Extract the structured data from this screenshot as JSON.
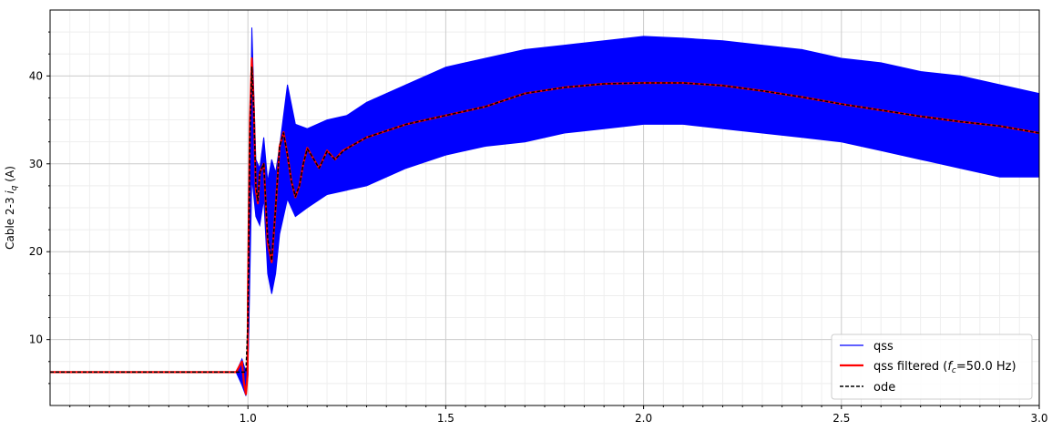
{
  "chart_data": {
    "type": "line",
    "title": "",
    "xlabel": "",
    "ylabel_prefix": "Cable 2-3 ",
    "ylabel_var": "i",
    "ylabel_sub": "q",
    "ylabel_suffix": " (A)",
    "xlim": [
      0.5,
      3.0
    ],
    "ylim": [
      2.5,
      47.5
    ],
    "grid": "major and minor",
    "legend_position": "lower-right",
    "x_ticks": [
      1.0,
      1.5,
      2.0,
      2.5,
      3.0
    ],
    "x_tick_labels": [
      "1.0",
      "1.5",
      "2.0",
      "2.5",
      "3.0"
    ],
    "y_ticks": [
      10,
      20,
      30,
      40
    ],
    "y_tick_labels": [
      "10",
      "20",
      "30",
      "40"
    ],
    "series": [
      {
        "name": "qss",
        "color": "#0000ff",
        "style": "solid",
        "kind": "oscillation-envelope",
        "x": [
          0.5,
          0.97,
          0.985,
          0.995,
          1.0,
          1.01,
          1.02,
          1.03,
          1.04,
          1.05,
          1.06,
          1.07,
          1.08,
          1.1,
          1.12,
          1.15,
          1.2,
          1.25,
          1.3,
          1.4,
          1.5,
          1.6,
          1.7,
          1.8,
          1.9,
          2.0,
          2.1,
          2.2,
          2.3,
          2.4,
          2.5,
          2.6,
          2.7,
          2.8,
          2.9,
          3.0
        ],
        "upper": [
          6.3,
          6.3,
          7.8,
          6.3,
          7.0,
          45.5,
          30.5,
          29.5,
          33.0,
          28.0,
          30.5,
          29.0,
          32.0,
          39.0,
          34.5,
          34.0,
          35.0,
          35.5,
          37.0,
          39.0,
          41.0,
          42.0,
          43.0,
          43.5,
          44.0,
          44.5,
          44.3,
          44.0,
          43.5,
          43.0,
          42.0,
          41.5,
          40.5,
          40.0,
          39.0,
          38.0
        ],
        "lower": [
          6.3,
          6.3,
          4.8,
          3.6,
          6.0,
          28.5,
          24.0,
          23.0,
          26.0,
          17.5,
          15.2,
          17.5,
          22.0,
          26.0,
          24.0,
          25.0,
          26.5,
          27.0,
          27.5,
          29.5,
          31.0,
          32.0,
          32.5,
          33.5,
          34.0,
          34.5,
          34.5,
          34.0,
          33.5,
          33.0,
          32.5,
          31.5,
          30.5,
          29.5,
          28.5,
          28.5
        ]
      },
      {
        "name": "qss filtered (fc=50.0 Hz)",
        "color": "#ff0000",
        "style": "solid",
        "x": [
          0.5,
          0.97,
          0.985,
          0.99,
          0.995,
          0.999,
          1.0,
          1.005,
          1.01,
          1.015,
          1.02,
          1.025,
          1.03,
          1.04,
          1.05,
          1.06,
          1.07,
          1.08,
          1.09,
          1.1,
          1.11,
          1.12,
          1.13,
          1.14,
          1.15,
          1.16,
          1.18,
          1.2,
          1.22,
          1.24,
          1.26,
          1.3,
          1.4,
          1.5,
          1.6,
          1.7,
          1.8,
          1.9,
          2.0,
          2.1,
          2.2,
          2.3,
          2.4,
          2.5,
          2.6,
          2.7,
          2.8,
          2.9,
          3.0
        ],
        "values": [
          6.3,
          6.3,
          7.5,
          5.0,
          3.8,
          6.0,
          15.0,
          35.0,
          42.0,
          36.0,
          27.0,
          25.5,
          29.0,
          30.0,
          21.0,
          18.8,
          25.0,
          32.0,
          33.6,
          31.0,
          28.0,
          26.2,
          27.5,
          30.0,
          31.8,
          31.0,
          29.5,
          31.5,
          30.5,
          31.5,
          32.0,
          33.0,
          34.5,
          35.5,
          36.5,
          38.0,
          38.7,
          39.1,
          39.2,
          39.2,
          38.9,
          38.3,
          37.6,
          36.8,
          36.1,
          35.4,
          34.8,
          34.3,
          33.5
        ]
      },
      {
        "name": "ode",
        "color": "#000000",
        "style": "dashed",
        "x": [
          0.5,
          0.98,
          0.99,
          0.995,
          1.0,
          1.005,
          1.01,
          1.015,
          1.02,
          1.025,
          1.03,
          1.04,
          1.05,
          1.06,
          1.07,
          1.08,
          1.09,
          1.1,
          1.11,
          1.12,
          1.13,
          1.14,
          1.15,
          1.16,
          1.18,
          1.2,
          1.22,
          1.24,
          1.26,
          1.3,
          1.4,
          1.5,
          1.6,
          1.7,
          1.8,
          1.9,
          2.0,
          2.1,
          2.2,
          2.3,
          2.4,
          2.5,
          2.6,
          2.7,
          2.8,
          2.9,
          3.0
        ],
        "values": [
          6.3,
          6.3,
          6.3,
          6.3,
          12.0,
          33.0,
          41.0,
          36.0,
          27.5,
          25.8,
          29.0,
          30.0,
          21.5,
          19.0,
          25.0,
          32.0,
          33.5,
          31.0,
          28.0,
          26.3,
          27.5,
          30.0,
          31.7,
          31.0,
          29.5,
          31.4,
          30.5,
          31.4,
          32.0,
          33.0,
          34.5,
          35.5,
          36.5,
          38.0,
          38.7,
          39.1,
          39.2,
          39.2,
          38.9,
          38.3,
          37.6,
          36.8,
          36.1,
          35.4,
          34.8,
          34.3,
          33.5
        ]
      }
    ],
    "legend": {
      "entries": [
        {
          "prefix": "qss",
          "italic": "",
          "sub": "",
          "suffix": ""
        },
        {
          "prefix": "qss filtered (",
          "italic": "f",
          "sub": "c",
          "suffix": "=50.0 Hz)"
        },
        {
          "prefix": "ode",
          "italic": "",
          "sub": "",
          "suffix": ""
        }
      ]
    }
  }
}
